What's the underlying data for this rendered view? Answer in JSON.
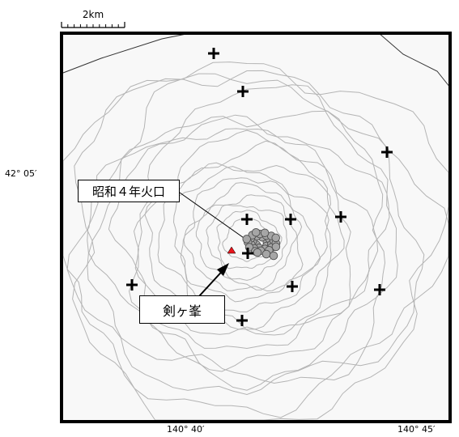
{
  "scale_bar": {
    "label": "2km"
  },
  "axes": {
    "lat_label": "42° 05′",
    "lon_labels": [
      "140° 40′",
      "140° 45′"
    ]
  },
  "annotations": {
    "crater_label": "昭和４年火口",
    "peak_label": "剣ヶ峯"
  },
  "stations": [
    {
      "name": "station-1"
    },
    {
      "name": "station-2"
    },
    {
      "name": "station-3"
    },
    {
      "name": "station-4"
    },
    {
      "name": "station-5"
    },
    {
      "name": "station-6"
    },
    {
      "name": "station-7"
    },
    {
      "name": "station-8"
    },
    {
      "name": "station-9"
    },
    {
      "name": "station-10"
    },
    {
      "name": "station-11"
    }
  ],
  "hypocenter_count": 30,
  "colors": {
    "frame": "#000000",
    "map_fill": "#f8f8f8",
    "contour": "#b4b4b4",
    "coastline": "#333333",
    "hypocenter_fill": "#a6a6a6",
    "hypocenter_stroke": "#4d4d4d",
    "summit": "#e8141b",
    "station": "#000000"
  },
  "icons": {
    "station": "plus-icon",
    "summit": "triangle-icon",
    "hypocenter": "circle-icon"
  }
}
